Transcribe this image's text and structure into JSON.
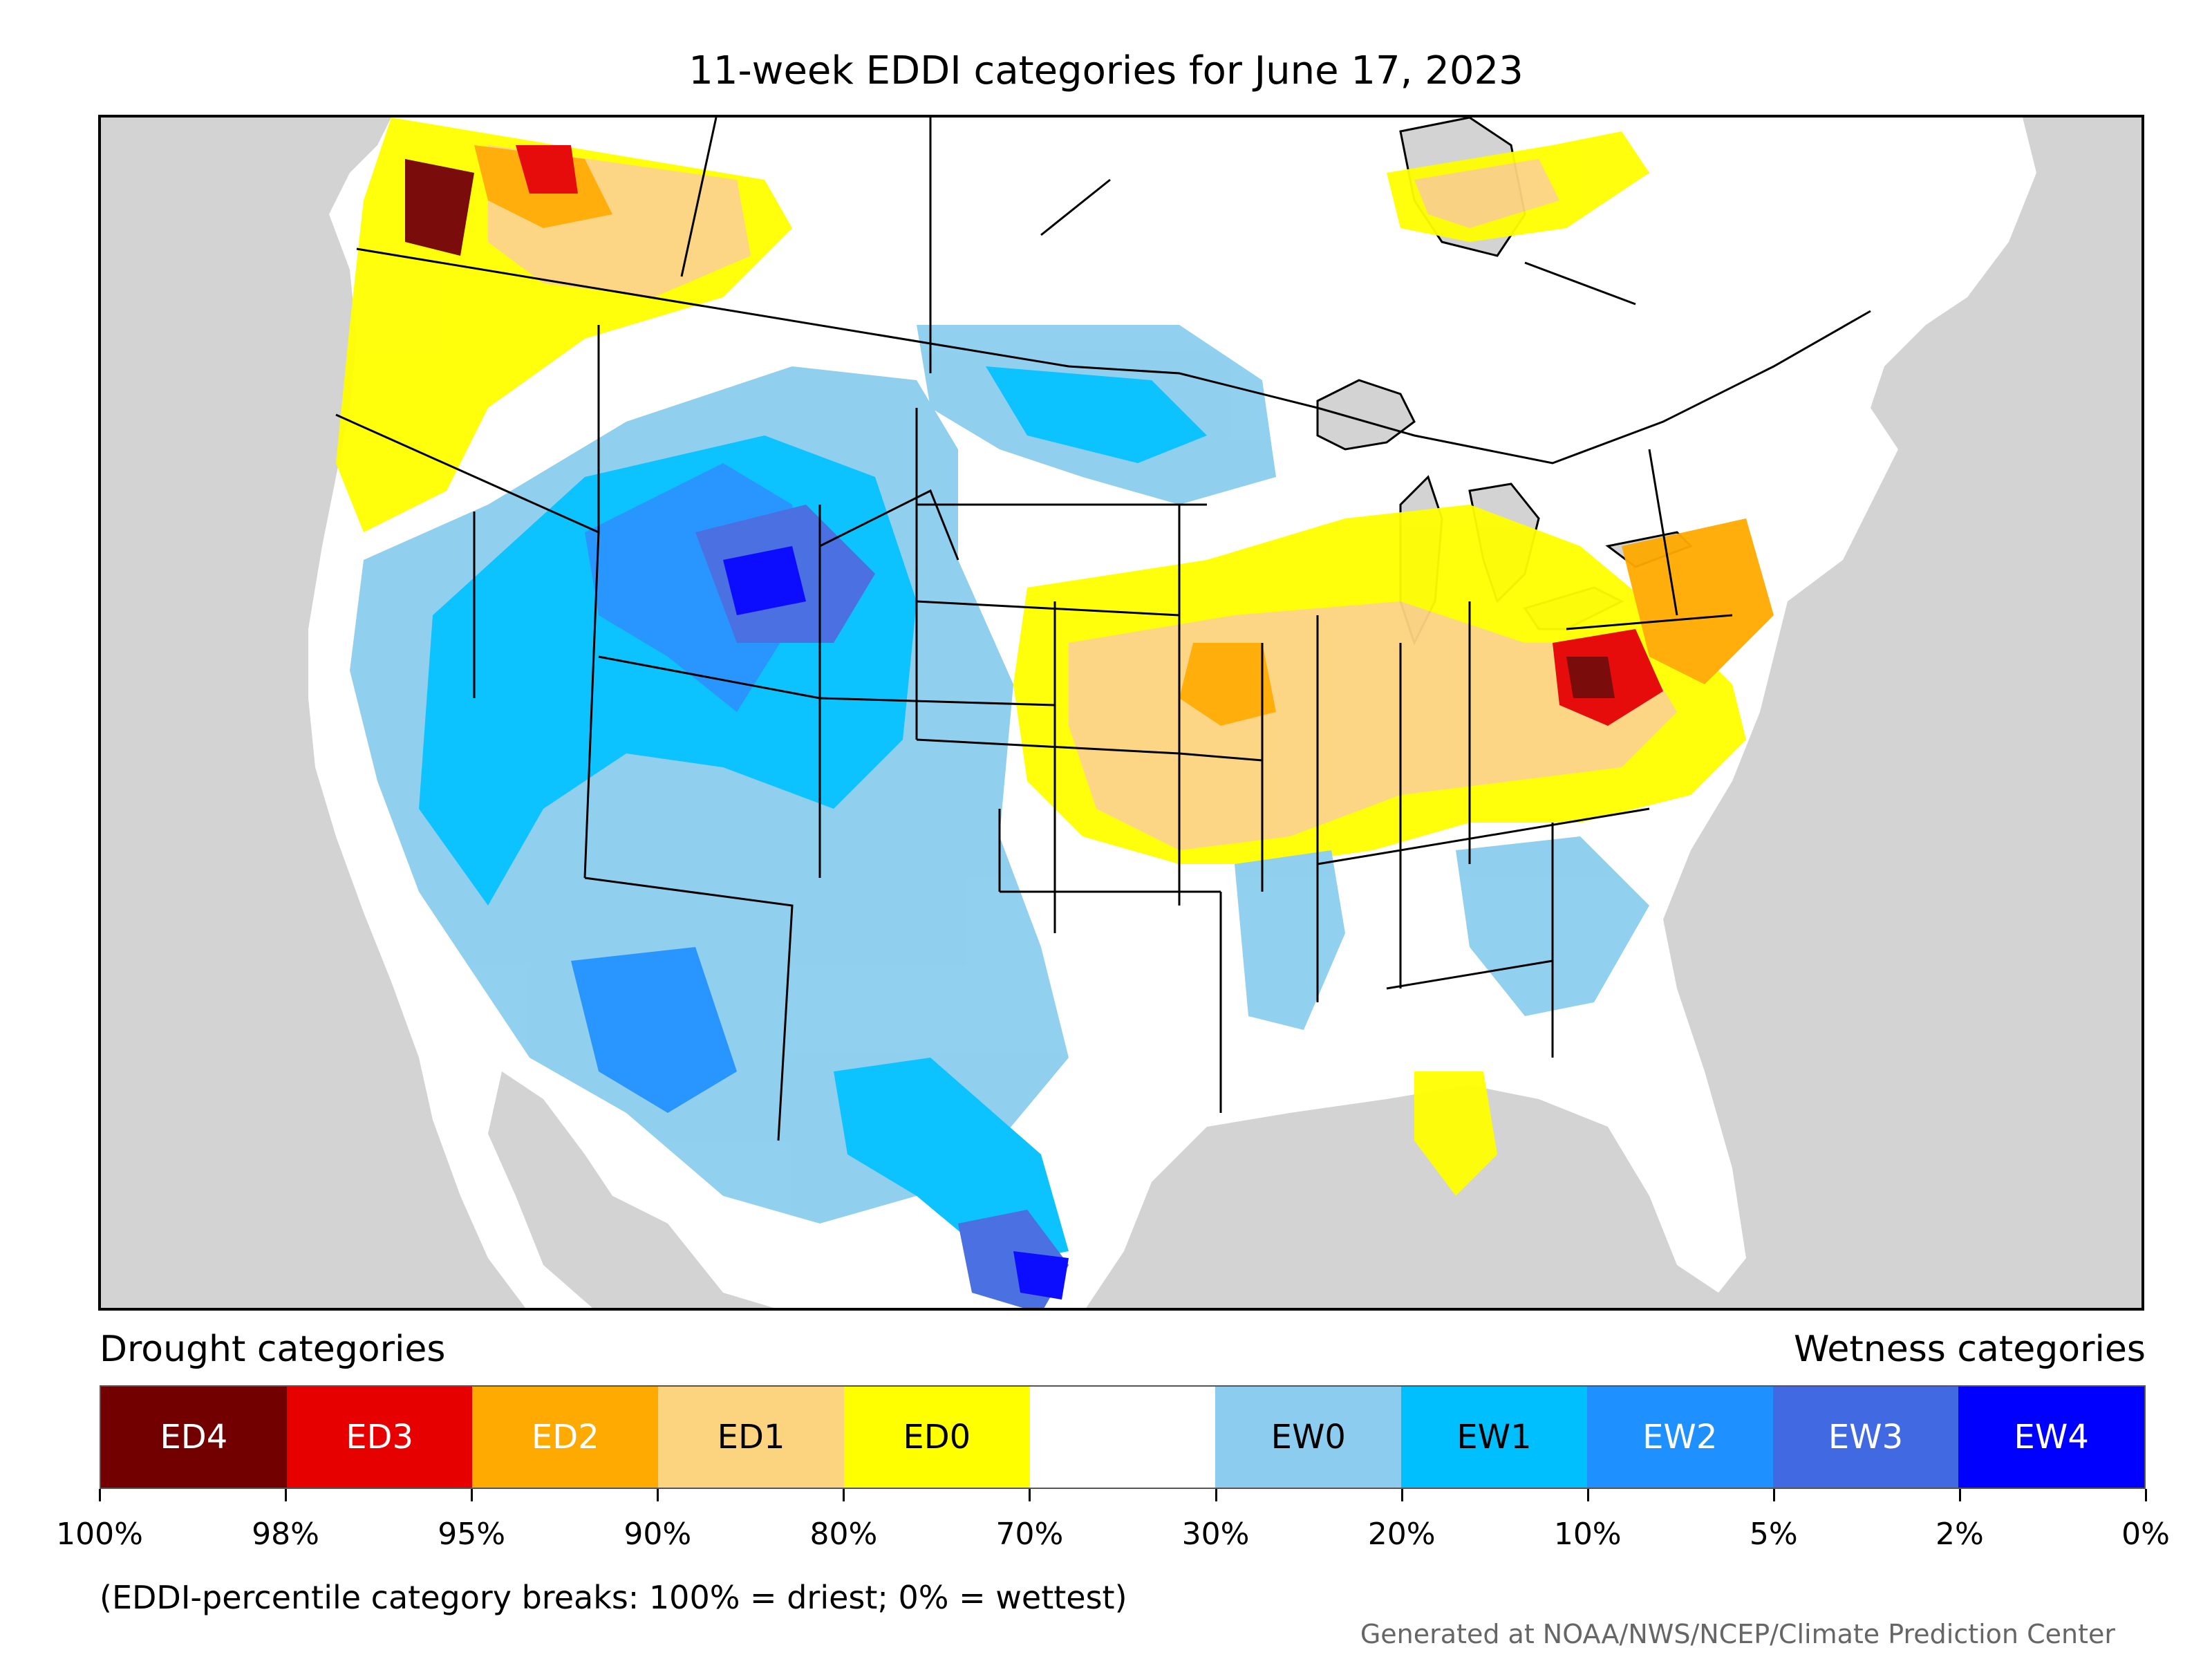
{
  "title": "11-week EDDI categories for June 17, 2023",
  "legend": {
    "drought_heading": "Drought categories",
    "wetness_heading": "Wetness categories",
    "categories": [
      {
        "label": "ED4",
        "color": "#730000",
        "text_color": "#ffffff"
      },
      {
        "label": "ED3",
        "color": "#e60000",
        "text_color": "#ffffff"
      },
      {
        "label": "ED2",
        "color": "#ffaa00",
        "text_color": "#ffffff"
      },
      {
        "label": "ED1",
        "color": "#fcd37f",
        "text_color": "#000000"
      },
      {
        "label": "ED0",
        "color": "#ffff00",
        "text_color": "#000000"
      },
      {
        "label": "",
        "color": "#ffffff",
        "text_color": "#000000"
      },
      {
        "label": "EW0",
        "color": "#8ccdef",
        "text_color": "#000000"
      },
      {
        "label": "EW1",
        "color": "#00bfff",
        "text_color": "#000000"
      },
      {
        "label": "EW2",
        "color": "#1e90ff",
        "text_color": "#ffffff"
      },
      {
        "label": "EW3",
        "color": "#4169e1",
        "text_color": "#ffffff"
      },
      {
        "label": "EW4",
        "color": "#0000ff",
        "text_color": "#ffffff"
      }
    ],
    "breaks": [
      "100%",
      "98%",
      "95%",
      "90%",
      "80%",
      "70%",
      "30%",
      "20%",
      "10%",
      "5%",
      "2%",
      "0%"
    ]
  },
  "note": "(EDDI-percentile category breaks: 100% = driest; 0% = wettest)",
  "credit": "Generated at NOAA/NWS/NCEP/Climate Prediction Center"
}
